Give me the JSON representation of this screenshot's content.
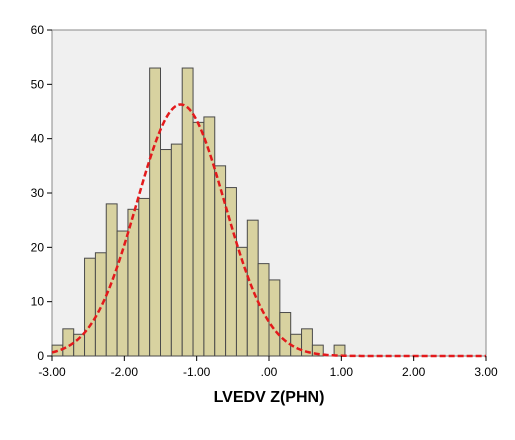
{
  "chart_data": {
    "type": "bar",
    "subtype": "histogram",
    "title": "",
    "xlabel": "LVEDV Z(PHN)",
    "ylabel": "",
    "xlim": [
      -3.0,
      3.0
    ],
    "ylim": [
      0,
      60
    ],
    "x_ticks": [
      -3.0,
      -2.0,
      -1.0,
      0.0,
      1.0,
      2.0,
      3.0
    ],
    "x_tick_labels": [
      "-3.00",
      "-2.00",
      "-1.00",
      ".00",
      "1.00",
      "2.00",
      "3.00"
    ],
    "y_ticks": [
      0,
      10,
      20,
      30,
      40,
      50,
      60
    ],
    "y_tick_labels": [
      "0",
      "10",
      "20",
      "30",
      "40",
      "50",
      "60"
    ],
    "grid": false,
    "bin_width": 0.15,
    "bins": [
      {
        "start": -3.0,
        "count": 2
      },
      {
        "start": -2.85,
        "count": 5
      },
      {
        "start": -2.7,
        "count": 4
      },
      {
        "start": -2.55,
        "count": 18
      },
      {
        "start": -2.4,
        "count": 19
      },
      {
        "start": -2.25,
        "count": 28
      },
      {
        "start": -2.1,
        "count": 23
      },
      {
        "start": -1.95,
        "count": 27
      },
      {
        "start": -1.8,
        "count": 29
      },
      {
        "start": -1.65,
        "count": 53
      },
      {
        "start": -1.5,
        "count": 38
      },
      {
        "start": -1.35,
        "count": 39
      },
      {
        "start": -1.2,
        "count": 53
      },
      {
        "start": -1.05,
        "count": 43
      },
      {
        "start": -0.9,
        "count": 44
      },
      {
        "start": -0.75,
        "count": 35
      },
      {
        "start": -0.6,
        "count": 31
      },
      {
        "start": -0.45,
        "count": 20
      },
      {
        "start": -0.3,
        "count": 25
      },
      {
        "start": -0.15,
        "count": 17
      },
      {
        "start": 0.0,
        "count": 14
      },
      {
        "start": 0.15,
        "count": 8
      },
      {
        "start": 0.3,
        "count": 4
      },
      {
        "start": 0.45,
        "count": 5
      },
      {
        "start": 0.6,
        "count": 2
      },
      {
        "start": 0.75,
        "count": 0
      },
      {
        "start": 0.9,
        "count": 2
      }
    ],
    "normal_curve": {
      "mean": -1.22,
      "sd": 0.61,
      "peak": 46.3,
      "color": "#e31a1c",
      "style": "dashed"
    },
    "colors": {
      "bar_fill": "#d8d2a0",
      "bar_stroke": "#4a4a4a",
      "plot_background": "#f0f0f0"
    }
  }
}
